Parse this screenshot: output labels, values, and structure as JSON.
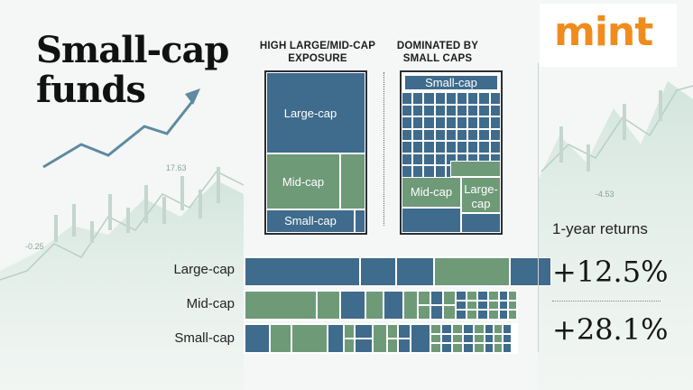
{
  "title": {
    "line1": "Small-cap",
    "line2": "funds"
  },
  "logo": "mint",
  "panels": [
    {
      "header_line1": "HIGH LARGE/MID-CAP",
      "header_line2": "EXPOSURE",
      "labels": {
        "large": "Large-cap",
        "mid": "Mid-cap",
        "small": "Small-cap"
      }
    },
    {
      "header_line1": "DOMINATED BY",
      "header_line2": "SMALL CAPS",
      "labels": {
        "small": "Small-cap",
        "mid": "Mid-cap",
        "large_line1": "Large-",
        "large_line2": "cap"
      }
    }
  ],
  "rows": [
    "Large-cap",
    "Mid-cap",
    "Small-cap"
  ],
  "returns": {
    "label": "1-year returns",
    "values": [
      "+12.5%",
      "+28.1%"
    ]
  },
  "bg_ticks": [
    "17.63",
    "-0.25",
    "-4.53"
  ],
  "colors": {
    "blue": "#3f6b8c",
    "green": "#6e9a78",
    "accent": "#f08c1e"
  }
}
